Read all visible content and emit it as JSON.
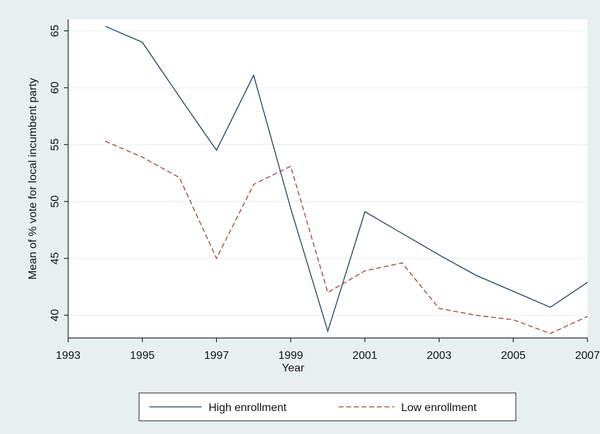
{
  "chart_data": {
    "type": "line",
    "title": "",
    "xlabel": "Year",
    "ylabel": "Mean of % vote for local incumbent party",
    "xlim": [
      1993,
      2007
    ],
    "ylim": [
      38,
      66
    ],
    "x_ticks": [
      1993,
      1995,
      1997,
      1999,
      2001,
      2003,
      2005,
      2007
    ],
    "y_ticks": [
      40,
      45,
      50,
      55,
      60,
      65
    ],
    "grid": true,
    "legend_position": "bottom",
    "x": [
      1994,
      1995,
      1996,
      1997,
      1998,
      1999,
      2000,
      2001,
      2002,
      2003,
      2004,
      2005,
      2006,
      2007
    ],
    "series": [
      {
        "name": "High enrollment",
        "color": "#1f3b57",
        "style": "solid",
        "values": [
          65.4,
          64.0,
          59.2,
          54.5,
          61.1,
          49.4,
          38.6,
          49.1,
          47.2,
          45.3,
          43.5,
          42.1,
          40.7,
          42.9
        ]
      },
      {
        "name": "Low enrollment",
        "color": "#9b3b38",
        "style": "dashed",
        "values": [
          55.3,
          53.9,
          52.1,
          45.0,
          51.5,
          53.1,
          42.0,
          43.9,
          44.6,
          40.6,
          40.0,
          39.6,
          38.4,
          39.9
        ]
      }
    ]
  },
  "colors": {
    "outer_background": "#e8eff1",
    "plot_background": "#ffffff",
    "grid": "#e7ecee",
    "axis": "#222222"
  }
}
